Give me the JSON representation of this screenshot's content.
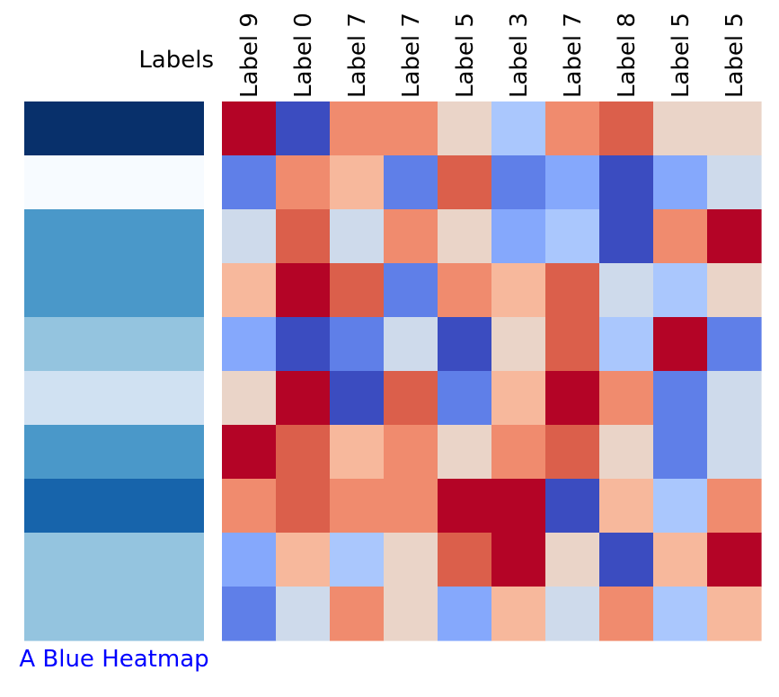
{
  "chart_data": {
    "type": "heatmap",
    "row_annotation_title": "A Blue Heatmap",
    "row_annotation_colors": [
      "#08306b",
      "#f7fbff",
      "#4a98c9",
      "#4a98c9",
      "#94c4df",
      "#d0e1f2",
      "#4a98c9",
      "#1764ab",
      "#94c4df",
      "#94c4df"
    ],
    "column_header": "Labels",
    "columns": [
      "Label 9",
      "Label 0",
      "Label 7",
      "Label 7",
      "Label 5",
      "Label 3",
      "Label 7",
      "Label 8",
      "Label 5",
      "Label 5"
    ],
    "colormap": "coolwarm",
    "palette": [
      "#3b4cc0",
      "#5f7fe8",
      "#85a8fc",
      "#aac7fd",
      "#cedaeb",
      "#ead4c8",
      "#f7b89c",
      "#f08b6e",
      "#db5f4b",
      "#b40426"
    ],
    "values": [
      [
        9,
        0,
        7,
        7,
        5,
        3,
        7,
        8,
        5,
        5
      ],
      [
        1,
        7,
        6,
        1,
        8,
        1,
        2,
        0,
        2,
        4
      ],
      [
        4,
        8,
        4,
        7,
        5,
        2,
        3,
        0,
        7,
        9
      ],
      [
        6,
        9,
        8,
        1,
        7,
        6,
        8,
        4,
        3,
        5
      ],
      [
        2,
        0,
        1,
        4,
        0,
        5,
        8,
        3,
        9,
        1
      ],
      [
        5,
        9,
        0,
        8,
        1,
        6,
        9,
        7,
        1,
        4
      ],
      [
        9,
        8,
        6,
        7,
        5,
        7,
        8,
        5,
        1,
        4
      ],
      [
        7,
        8,
        7,
        7,
        9,
        9,
        0,
        6,
        3,
        7
      ],
      [
        2,
        6,
        3,
        5,
        8,
        9,
        5,
        0,
        6,
        9
      ],
      [
        1,
        4,
        7,
        5,
        2,
        6,
        4,
        7,
        3,
        6
      ]
    ]
  }
}
